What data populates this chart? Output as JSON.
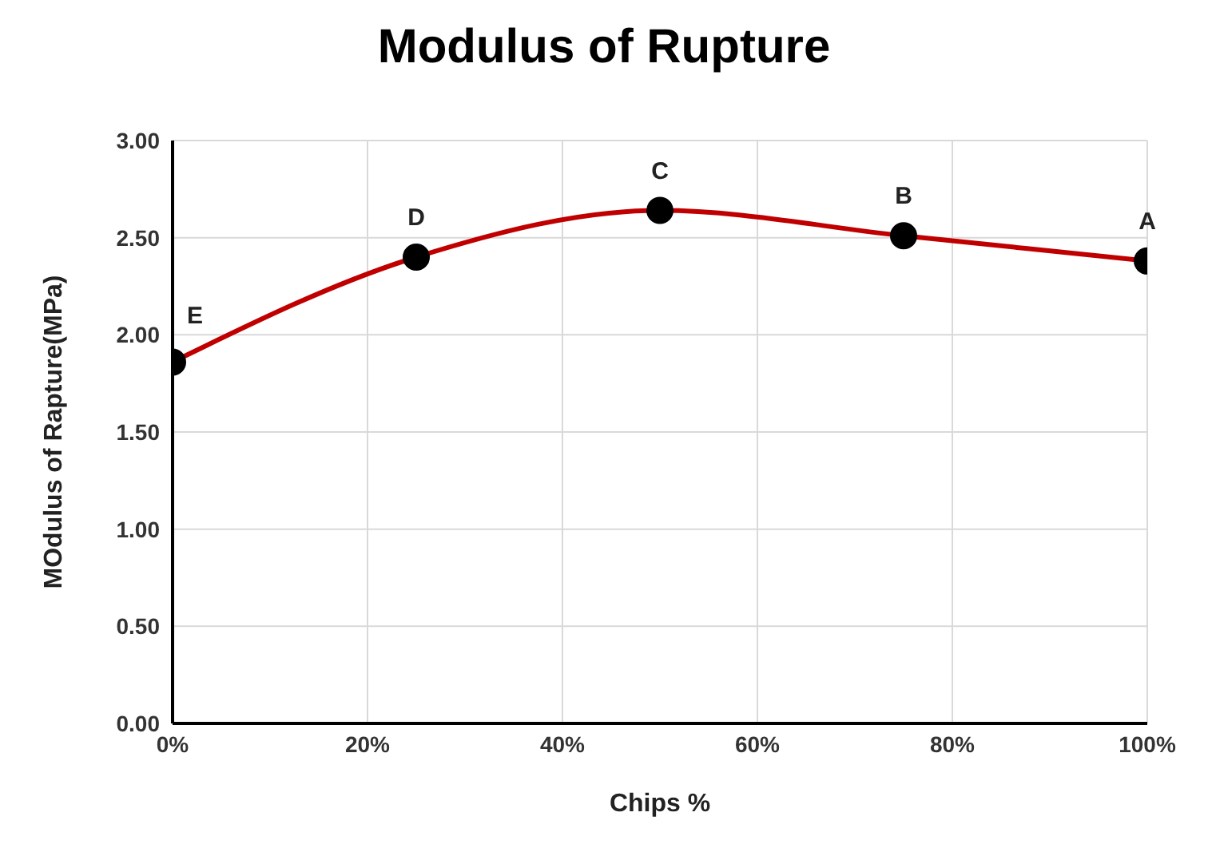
{
  "chart_data": {
    "type": "line",
    "title": "Modulus of Rupture",
    "xlabel": "Chips %",
    "ylabel": "MOdulus of Rapture(MPa)",
    "x": [
      0,
      25,
      50,
      75,
      100
    ],
    "series": [
      {
        "color": "#c00000",
        "values": [
          1.86,
          2.4,
          2.64,
          2.51,
          2.38
        ]
      }
    ],
    "xlim": [
      0,
      100
    ],
    "xticks": [
      {
        "value": 0,
        "label": "0%"
      },
      {
        "value": 20,
        "label": "20%"
      },
      {
        "value": 40,
        "label": "40%"
      },
      {
        "value": 60,
        "label": "60%"
      },
      {
        "value": 80,
        "label": "80%"
      },
      {
        "value": 100,
        "label": "100%"
      }
    ],
    "ylim": [
      0,
      3
    ],
    "yticks": [
      {
        "value": 0,
        "label": "0.00"
      },
      {
        "value": 0.5,
        "label": "0.50"
      },
      {
        "value": 1,
        "label": "1.00"
      },
      {
        "value": 1.5,
        "label": "1.50"
      },
      {
        "value": 2,
        "label": "2.00"
      },
      {
        "value": 2.5,
        "label": "2.50"
      },
      {
        "value": 3,
        "label": "3.00"
      }
    ],
    "annotations": [
      {
        "text": "E",
        "x": 0,
        "y": 1.86
      },
      {
        "text": "D",
        "x": 25,
        "y": 2.4
      },
      {
        "text": "C",
        "x": 50,
        "y": 2.64
      },
      {
        "text": "B",
        "x": 75,
        "y": 2.51
      },
      {
        "text": "A",
        "x": 100,
        "y": 2.38
      }
    ],
    "grid": true,
    "marker": "circle",
    "line_style": "solid"
  }
}
